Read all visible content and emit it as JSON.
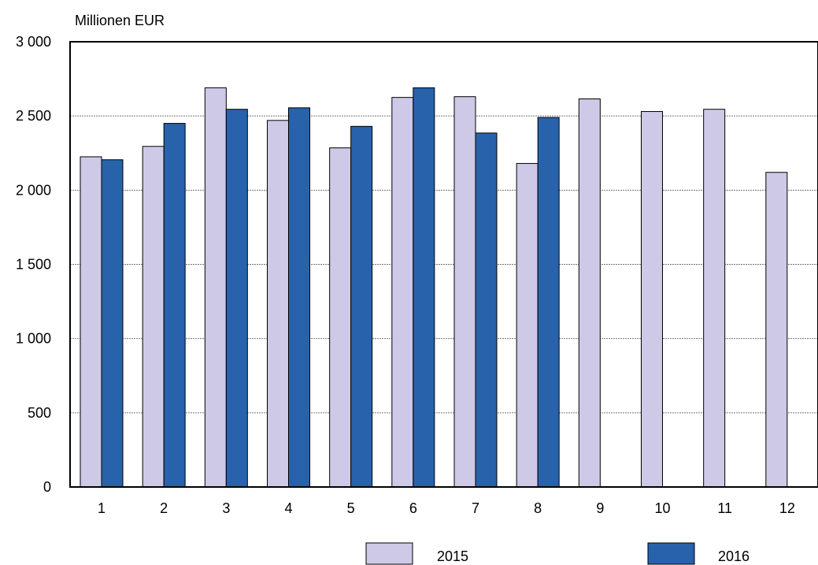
{
  "chart_data": {
    "type": "bar",
    "unit_label": "Millionen EUR",
    "categories": [
      "1",
      "2",
      "3",
      "4",
      "5",
      "6",
      "7",
      "8",
      "9",
      "10",
      "11",
      "12"
    ],
    "series": [
      {
        "name": "2015",
        "color": "#cdc9e6",
        "values": [
          2225,
          2295,
          2690,
          2470,
          2285,
          2625,
          2630,
          2180,
          2615,
          2530,
          2545,
          2120
        ]
      },
      {
        "name": "2016",
        "color": "#2862ab",
        "values": [
          2205,
          2450,
          2545,
          2555,
          2430,
          2690,
          2385,
          2490,
          null,
          null,
          null,
          null
        ]
      }
    ],
    "y_ticks": [
      0,
      500,
      1000,
      1500,
      2000,
      2500,
      3000
    ],
    "y_tick_labels": [
      "0",
      "500",
      "1 000",
      "1 500",
      "2 000",
      "2 500",
      "3 000"
    ],
    "ylim": [
      0,
      3000
    ],
    "grid": true,
    "legend_position": "bottom"
  }
}
